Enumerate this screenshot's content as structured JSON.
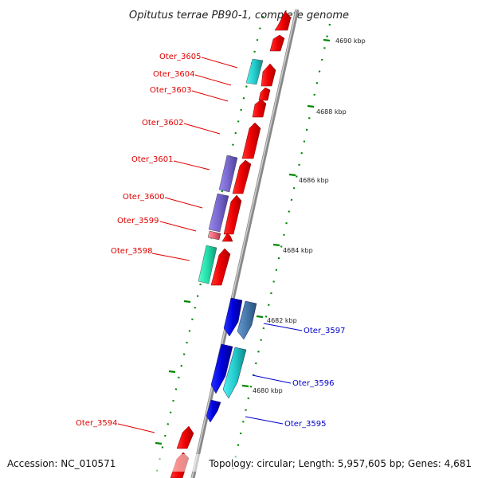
{
  "title": "Opitutus terrae PB90-1, complete genome",
  "accession": "Accession: NC_010571",
  "summary": "Topology: circular; Length: 5,957,605 bp; Genes: 4,681",
  "ticks": [
    "4690 kbp",
    "4688 kbp",
    "4686 kbp",
    "4684 kbp",
    "4682 kbp",
    "4680 kbp"
  ],
  "gene_labels_left": [
    "Oter_3605",
    "Oter_3604",
    "Oter_3603",
    "Oter_3602",
    "Oter_3601",
    "Oter_3600",
    "Oter_3599",
    "Oter_3598",
    "Oter_3594"
  ],
  "gene_labels_right": [
    "Oter_3597",
    "Oter_3596",
    "Oter_3595"
  ],
  "colors": {
    "forward_cds": "#ee0000",
    "reverse_cds": "#0000dd",
    "label_red": "#e00000",
    "label_blue": "#0000cc",
    "tick_green": "#008800",
    "backbone": "#888888",
    "cyan": "#22cccc",
    "purple": "#7766cc",
    "steel_blue": "#4477aa",
    "mint": "#22ddaa",
    "pink": "#ee6677"
  }
}
